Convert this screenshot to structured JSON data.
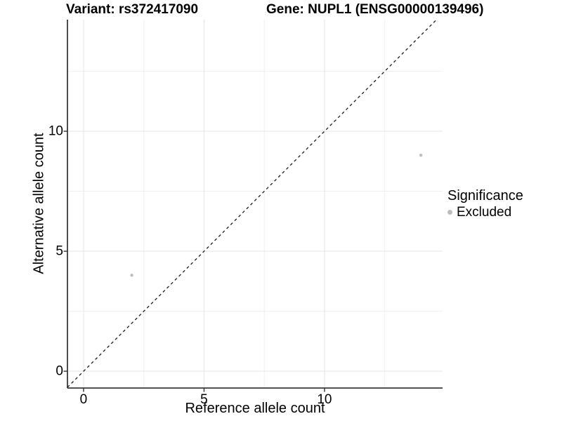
{
  "chart_data": {
    "type": "scatter",
    "titles": [
      "Variant: rs372417090",
      "Gene: NUPL1 (ENSG00000139496)"
    ],
    "xlabel": "Reference allele count",
    "ylabel": "Alternative allele count",
    "xlim": [
      -0.67,
      14.9
    ],
    "ylim": [
      -0.7,
      14.65
    ],
    "x_ticks": {
      "major": [
        0,
        5,
        10
      ],
      "minor": [
        2.5,
        7.5,
        12.5
      ]
    },
    "y_ticks": {
      "major": [
        0,
        5,
        10
      ],
      "minor": [
        2.5,
        7.5,
        12.5
      ]
    },
    "grid": "major+minor",
    "points": [
      {
        "x": 2,
        "y": 4,
        "series": "Excluded"
      },
      {
        "x": 14,
        "y": 9,
        "series": "Excluded"
      }
    ],
    "series": [
      {
        "name": "Excluded",
        "color": "#bdbdbd"
      }
    ],
    "reference_line": {
      "kind": "identity",
      "equation": "y = x",
      "style": "dashed"
    },
    "legend": {
      "title": "Significance",
      "position": "right",
      "items": [
        {
          "label": "Excluded",
          "color": "#bdbdbd"
        }
      ]
    }
  },
  "colors": {
    "background": "#ffffff",
    "text": "#000000",
    "axis_line": "#3a3a3a",
    "tick_mark": "#333333",
    "grid_major": "#e5e5e5",
    "grid_minor": "#f0f0f0",
    "point_fill": "#bdbdbd",
    "dashed_line": "#1a1a1a"
  }
}
